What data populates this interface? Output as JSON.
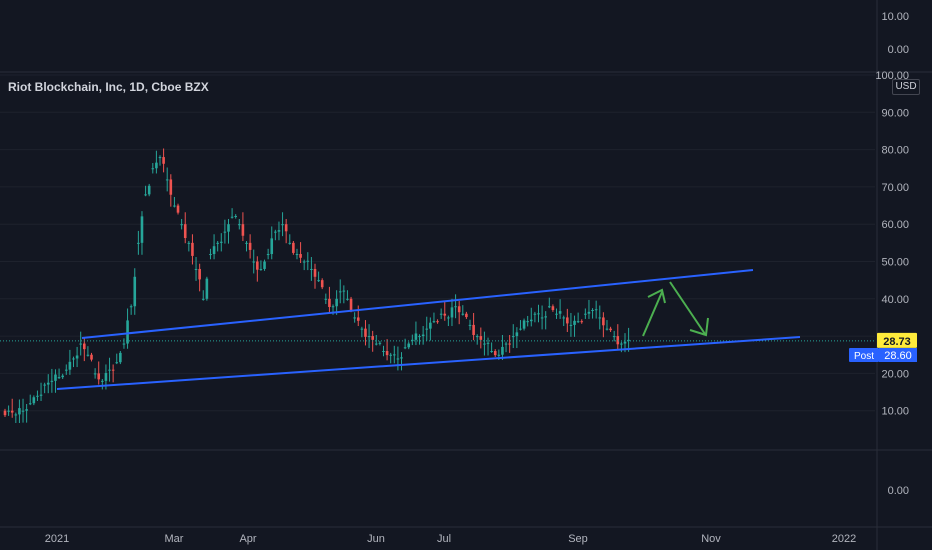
{
  "chart_data": {
    "type": "candlestick",
    "title": "Riot Blockchain, Inc, 1D, Cboe BZX",
    "currency": "USD",
    "x_labels": [
      "2021",
      "Mar",
      "Apr",
      "Jun",
      "Jul",
      "Sep",
      "Nov",
      "2022"
    ],
    "y_ticks_main": [
      "100.00",
      "90.00",
      "80.00",
      "70.00",
      "60.00",
      "50.00",
      "40.00",
      "30.00",
      "20.00",
      "10.00"
    ],
    "y_ticks_upper_pane": [
      "10.00",
      "0.00"
    ],
    "y_ticks_lower_pane": [
      "0.00"
    ],
    "ylim": [
      0,
      100
    ],
    "last_price": {
      "label": "28.73",
      "value": 28.73,
      "color": "#ffeb3b"
    },
    "post_price": {
      "tag": "Post",
      "label": "28.60",
      "value": 28.6,
      "color": "#2962ff"
    },
    "price_path": [
      10,
      9,
      10,
      12,
      14,
      17,
      18,
      19,
      21,
      24,
      28,
      25,
      20,
      18,
      21,
      23,
      28,
      38,
      55,
      68,
      75,
      78,
      72,
      65,
      60,
      55,
      48,
      40,
      52,
      55,
      58,
      62,
      60,
      55,
      50,
      48,
      52,
      58,
      60,
      55,
      52,
      50,
      48,
      45,
      40,
      38,
      42,
      40,
      35,
      32,
      30,
      28,
      26,
      25,
      24,
      27,
      29,
      30,
      32,
      34,
      36,
      35,
      38,
      36,
      33,
      30,
      28,
      26,
      25,
      28,
      30,
      32,
      34,
      36,
      35,
      38,
      36,
      35,
      33,
      34,
      36,
      37,
      35,
      32,
      30,
      28,
      29
    ],
    "trendlines": {
      "upper": {
        "start": [
          1,
          30
        ],
        "end": [
          3,
          47
        ]
      },
      "lower": {
        "start": [
          0,
          15
        ],
        "end": [
          4,
          29
        ]
      }
    },
    "arrows_color": "#4caf50",
    "line_color": "#2962ff"
  }
}
